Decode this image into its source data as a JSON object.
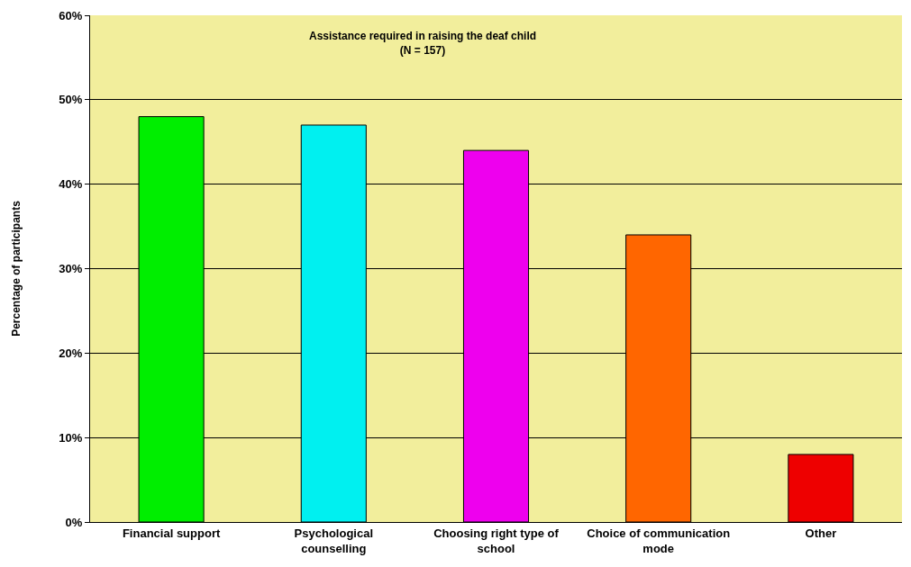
{
  "chart_data": {
    "type": "bar",
    "title": "Assistance required in raising the deaf child\n(N = 157)",
    "ylabel": "Percentage of participants",
    "categories": [
      "Financial support",
      "Psychological counselling",
      "Choosing right type of school",
      "Choice of communication mode",
      "Other"
    ],
    "values": [
      48,
      47,
      44,
      34,
      8
    ],
    "colors": [
      "#00ee00",
      "#00f0f0",
      "#ee00ee",
      "#ff6600",
      "#ee0000"
    ],
    "ylim": [
      0,
      60
    ],
    "yticks": [
      {
        "value": 0,
        "label": "0%"
      },
      {
        "value": 10,
        "label": "10%"
      },
      {
        "value": 20,
        "label": "20%"
      },
      {
        "value": 30,
        "label": "30%"
      },
      {
        "value": 40,
        "label": "40%"
      },
      {
        "value": 50,
        "label": "50%"
      },
      {
        "value": 60,
        "label": "60%"
      }
    ],
    "grid": "y"
  }
}
